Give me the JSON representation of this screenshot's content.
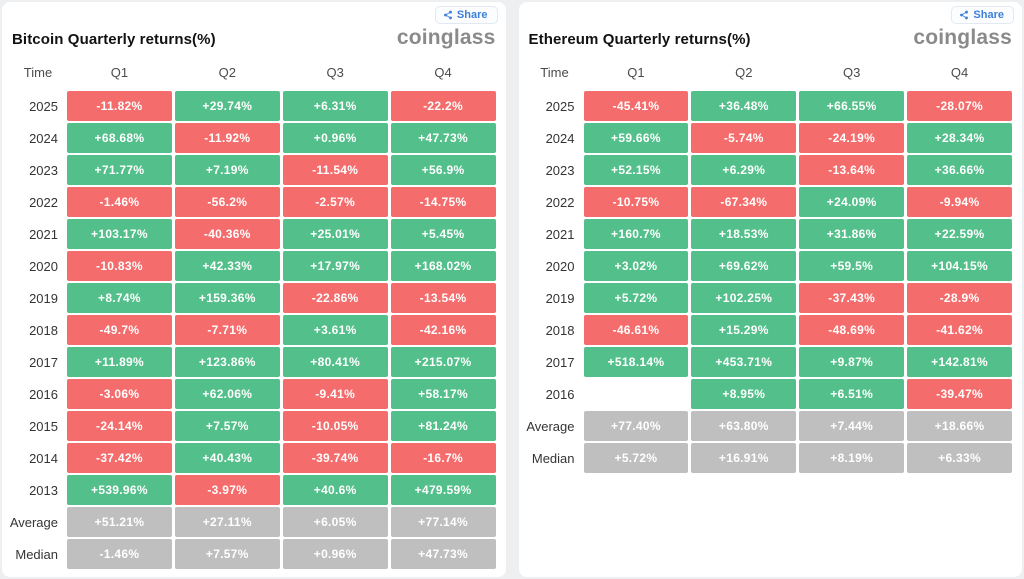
{
  "colors": {
    "positive_green": "#53c08b",
    "negative_red": "#f56c6c",
    "summary_gray": "#bfbfbf",
    "share_blue": "#3d7fd9",
    "logo_gray": "#8a8a8a",
    "page_background": "#edeff1"
  },
  "panels": [
    {
      "share_label": "Share",
      "logo": "coinglass"
    },
    {
      "share_label": "Share",
      "logo": "coinglass"
    }
  ],
  "chart_data": [
    {
      "type": "table",
      "title": "Bitcoin Quarterly returns(%)",
      "columns": [
        "Time",
        "Q1",
        "Q2",
        "Q3",
        "Q4"
      ],
      "rows": [
        {
          "label": "2025",
          "values": [
            "-11.82%",
            "+29.74%",
            "+6.31%",
            "-22.2%"
          ],
          "kinds": [
            "neg",
            "pos",
            "pos",
            "neg"
          ]
        },
        {
          "label": "2024",
          "values": [
            "+68.68%",
            "-11.92%",
            "+0.96%",
            "+47.73%"
          ],
          "kinds": [
            "pos",
            "neg",
            "pos",
            "pos"
          ]
        },
        {
          "label": "2023",
          "values": [
            "+71.77%",
            "+7.19%",
            "-11.54%",
            "+56.9%"
          ],
          "kinds": [
            "pos",
            "pos",
            "neg",
            "pos"
          ]
        },
        {
          "label": "2022",
          "values": [
            "-1.46%",
            "-56.2%",
            "-2.57%",
            "-14.75%"
          ],
          "kinds": [
            "neg",
            "neg",
            "neg",
            "neg"
          ]
        },
        {
          "label": "2021",
          "values": [
            "+103.17%",
            "-40.36%",
            "+25.01%",
            "+5.45%"
          ],
          "kinds": [
            "pos",
            "neg",
            "pos",
            "pos"
          ]
        },
        {
          "label": "2020",
          "values": [
            "-10.83%",
            "+42.33%",
            "+17.97%",
            "+168.02%"
          ],
          "kinds": [
            "neg",
            "pos",
            "pos",
            "pos"
          ]
        },
        {
          "label": "2019",
          "values": [
            "+8.74%",
            "+159.36%",
            "-22.86%",
            "-13.54%"
          ],
          "kinds": [
            "pos",
            "pos",
            "neg",
            "neg"
          ]
        },
        {
          "label": "2018",
          "values": [
            "-49.7%",
            "-7.71%",
            "+3.61%",
            "-42.16%"
          ],
          "kinds": [
            "neg",
            "neg",
            "pos",
            "neg"
          ]
        },
        {
          "label": "2017",
          "values": [
            "+11.89%",
            "+123.86%",
            "+80.41%",
            "+215.07%"
          ],
          "kinds": [
            "pos",
            "pos",
            "pos",
            "pos"
          ]
        },
        {
          "label": "2016",
          "values": [
            "-3.06%",
            "+62.06%",
            "-9.41%",
            "+58.17%"
          ],
          "kinds": [
            "neg",
            "pos",
            "neg",
            "pos"
          ]
        },
        {
          "label": "2015",
          "values": [
            "-24.14%",
            "+7.57%",
            "-10.05%",
            "+81.24%"
          ],
          "kinds": [
            "neg",
            "pos",
            "neg",
            "pos"
          ]
        },
        {
          "label": "2014",
          "values": [
            "-37.42%",
            "+40.43%",
            "-39.74%",
            "-16.7%"
          ],
          "kinds": [
            "neg",
            "pos",
            "neg",
            "neg"
          ]
        },
        {
          "label": "2013",
          "values": [
            "+539.96%",
            "-3.97%",
            "+40.6%",
            "+479.59%"
          ],
          "kinds": [
            "pos",
            "neg",
            "pos",
            "pos"
          ]
        },
        {
          "label": "Average",
          "values": [
            "+51.21%",
            "+27.11%",
            "+6.05%",
            "+77.14%"
          ],
          "kinds": [
            "avg",
            "avg",
            "avg",
            "avg"
          ]
        },
        {
          "label": "Median",
          "values": [
            "-1.46%",
            "+7.57%",
            "+0.96%",
            "+47.73%"
          ],
          "kinds": [
            "avg",
            "avg",
            "avg",
            "avg"
          ]
        }
      ]
    },
    {
      "type": "table",
      "title": "Ethereum Quarterly returns(%)",
      "columns": [
        "Time",
        "Q1",
        "Q2",
        "Q3",
        "Q4"
      ],
      "rows": [
        {
          "label": "2025",
          "values": [
            "-45.41%",
            "+36.48%",
            "+66.55%",
            "-28.07%"
          ],
          "kinds": [
            "neg",
            "pos",
            "pos",
            "neg"
          ]
        },
        {
          "label": "2024",
          "values": [
            "+59.66%",
            "-5.74%",
            "-24.19%",
            "+28.34%"
          ],
          "kinds": [
            "pos",
            "neg",
            "neg",
            "pos"
          ]
        },
        {
          "label": "2023",
          "values": [
            "+52.15%",
            "+6.29%",
            "-13.64%",
            "+36.66%"
          ],
          "kinds": [
            "pos",
            "pos",
            "neg",
            "pos"
          ]
        },
        {
          "label": "2022",
          "values": [
            "-10.75%",
            "-67.34%",
            "+24.09%",
            "-9.94%"
          ],
          "kinds": [
            "neg",
            "neg",
            "pos",
            "neg"
          ]
        },
        {
          "label": "2021",
          "values": [
            "+160.7%",
            "+18.53%",
            "+31.86%",
            "+22.59%"
          ],
          "kinds": [
            "pos",
            "pos",
            "pos",
            "pos"
          ]
        },
        {
          "label": "2020",
          "values": [
            "+3.02%",
            "+69.62%",
            "+59.5%",
            "+104.15%"
          ],
          "kinds": [
            "pos",
            "pos",
            "pos",
            "pos"
          ]
        },
        {
          "label": "2019",
          "values": [
            "+5.72%",
            "+102.25%",
            "-37.43%",
            "-28.9%"
          ],
          "kinds": [
            "pos",
            "pos",
            "neg",
            "neg"
          ]
        },
        {
          "label": "2018",
          "values": [
            "-46.61%",
            "+15.29%",
            "-48.69%",
            "-41.62%"
          ],
          "kinds": [
            "neg",
            "pos",
            "neg",
            "neg"
          ]
        },
        {
          "label": "2017",
          "values": [
            "+518.14%",
            "+453.71%",
            "+9.87%",
            "+142.81%"
          ],
          "kinds": [
            "pos",
            "pos",
            "pos",
            "pos"
          ]
        },
        {
          "label": "2016",
          "values": [
            "",
            "+8.95%",
            "+6.51%",
            "-39.47%"
          ],
          "kinds": [
            "empty",
            "pos",
            "pos",
            "neg"
          ]
        },
        {
          "label": "Average",
          "values": [
            "+77.40%",
            "+63.80%",
            "+7.44%",
            "+18.66%"
          ],
          "kinds": [
            "avg",
            "avg",
            "avg",
            "avg"
          ]
        },
        {
          "label": "Median",
          "values": [
            "+5.72%",
            "+16.91%",
            "+8.19%",
            "+6.33%"
          ],
          "kinds": [
            "avg",
            "avg",
            "avg",
            "avg"
          ]
        }
      ]
    }
  ]
}
